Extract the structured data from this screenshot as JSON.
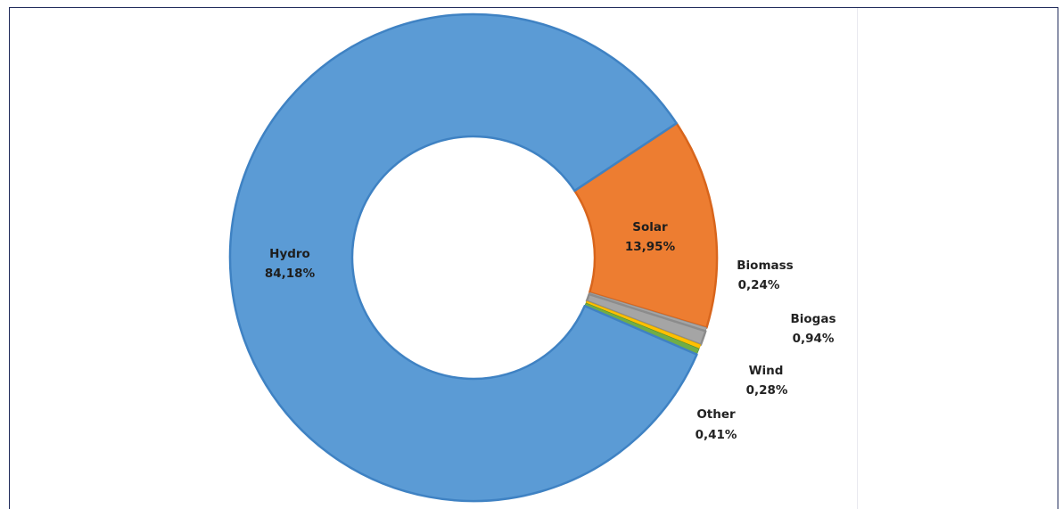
{
  "chart_data": {
    "type": "donut",
    "title": "",
    "slices": [
      {
        "name": "Hydro",
        "value": 84.18,
        "label": "84,18%",
        "color": "#5b9bd5"
      },
      {
        "name": "Solar",
        "value": 13.95,
        "label": "13,95%",
        "color": "#ed7d31"
      },
      {
        "name": "Biomass",
        "value": 0.24,
        "label": "0,24%",
        "color": "#a5a5a5"
      },
      {
        "name": "Biogas",
        "value": 0.94,
        "label": "0,94%",
        "color": "#a5a5a5"
      },
      {
        "name": "Wind",
        "value": 0.28,
        "label": "0,28%",
        "color": "#ffc000"
      },
      {
        "name": "Other",
        "value": 0.41,
        "label": "0,41%",
        "color": "#70ad47"
      }
    ],
    "slice_outline_colors": [
      "#3f82c3",
      "#d8651c",
      "#8c8c8c",
      "#8c8c8c",
      "#d9a300",
      "#4f8f2f"
    ]
  }
}
